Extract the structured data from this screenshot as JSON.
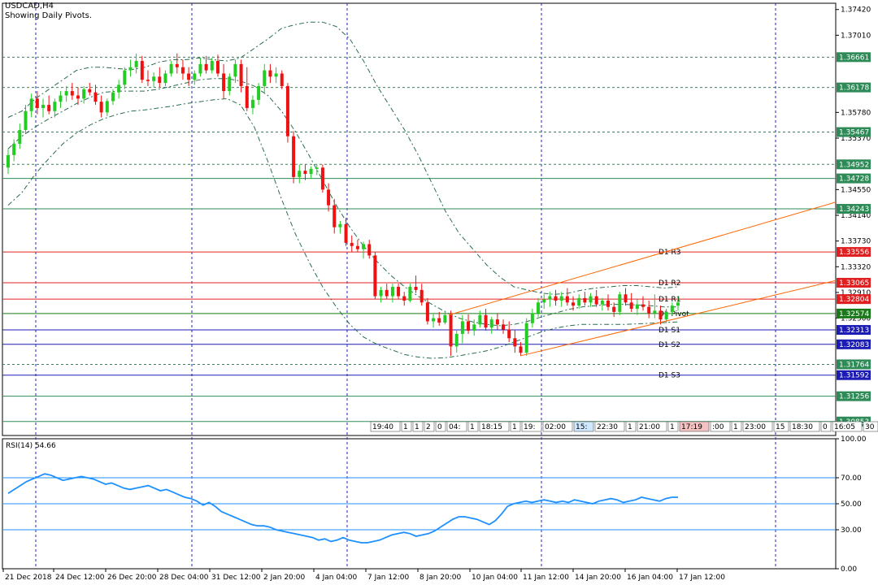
{
  "header": {
    "symbol_line": "USDCAD,H4",
    "subtitle": "Showing Daily Pivots."
  },
  "rsi_panel": {
    "label": "RSI(14) 54.66",
    "levels": [
      70,
      50,
      30
    ],
    "axis_labels": [
      "100.00",
      "70.00",
      "50.00",
      "30.00",
      "0.00"
    ]
  },
  "colors": {
    "up_candle": "#22cc22",
    "down_candle": "#ee1111",
    "band": "#2a6e4e",
    "resistance": "#e02020",
    "support": "#1c1cb4",
    "pivot": "#1a7a1a",
    "green_line": "#2e8b57",
    "channel": "#ff6600",
    "rsi_line": "#1e90ff",
    "rsi_levels": "#1e90ff",
    "grid": "#2020c8"
  },
  "chart_data": {
    "type": "candlestick",
    "title": "USDCAD,H4",
    "subtitle": "Showing Daily Pivots.",
    "ylim": [
      1.3063,
      1.3752
    ],
    "y_ticks": [
      "1.37420",
      "1.37010",
      "1.35780",
      "1.35370",
      "1.34550",
      "1.34140",
      "1.33730",
      "1.33320",
      "1.32910",
      "1.32500"
    ],
    "x_tick_labels": [
      "21 Dec 2018",
      "24 Dec 12:00",
      "26 Dec 20:00",
      "28 Dec 04:00",
      "31 Dec 12:00",
      "2 Jan 20:00",
      "4 Jan 04:00",
      "7 Jan 12:00",
      "8 Jan 20:00",
      "10 Jan 04:00",
      "11 Jan 12:00",
      "14 Jan 20:00",
      "16 Jan 04:00",
      "17 Jan 12:00"
    ],
    "levels": [
      {
        "value": 1.36661,
        "label": "1.36661",
        "style": "green-dashed",
        "text": ""
      },
      {
        "value": 1.36178,
        "label": "1.36178",
        "style": "green-dashed",
        "text": ""
      },
      {
        "value": 1.35467,
        "label": "1.35467",
        "style": "green-dashed",
        "text": ""
      },
      {
        "value": 1.34952,
        "label": "1.34952",
        "style": "green-dashed",
        "text": ""
      },
      {
        "value": 1.34728,
        "label": "1.34728",
        "style": "green-solid",
        "text": ""
      },
      {
        "value": 1.34243,
        "label": "1.34243",
        "style": "green-solid",
        "text": ""
      },
      {
        "value": 1.33556,
        "label": "1.33556",
        "style": "red",
        "text": "D1 R3"
      },
      {
        "value": 1.33065,
        "label": "1.33065",
        "style": "red",
        "text": "D1 R2"
      },
      {
        "value": 1.32804,
        "label": "1.32804",
        "style": "red",
        "text": "D1 R1"
      },
      {
        "value": 1.32574,
        "label": "1.32574",
        "style": "pivot",
        "text": "D1 Pivot"
      },
      {
        "value": 1.32313,
        "label": "1.32313",
        "style": "blue",
        "text": "D1 S1"
      },
      {
        "value": 1.32083,
        "label": "1.32083",
        "style": "blue",
        "text": "D1 S2"
      },
      {
        "value": 1.31764,
        "label": "1.31764",
        "style": "green-dashed",
        "text": ""
      },
      {
        "value": 1.31592,
        "label": "1.31592",
        "style": "blue",
        "text": "D1 S3"
      },
      {
        "value": 1.31256,
        "label": "1.31256",
        "style": "green-solid",
        "text": ""
      },
      {
        "value": 1.30853,
        "label": "1.30853",
        "style": "green-solid",
        "text": ""
      }
    ],
    "candles": [
      [
        1.349,
        1.352,
        1.348,
        1.351
      ],
      [
        1.351,
        1.3535,
        1.35,
        1.3528
      ],
      [
        1.3528,
        1.356,
        1.352,
        1.355
      ],
      [
        1.355,
        1.359,
        1.3545,
        1.358
      ],
      [
        1.358,
        1.3608,
        1.357,
        1.36
      ],
      [
        1.36,
        1.3612,
        1.3575,
        1.3585
      ],
      [
        1.3585,
        1.36,
        1.357,
        1.359
      ],
      [
        1.359,
        1.3605,
        1.3575,
        1.358
      ],
      [
        1.358,
        1.36,
        1.357,
        1.3595
      ],
      [
        1.3595,
        1.3612,
        1.3585,
        1.3605
      ],
      [
        1.3605,
        1.362,
        1.3595,
        1.3612
      ],
      [
        1.3612,
        1.3625,
        1.3598,
        1.3605
      ],
      [
        1.3605,
        1.3618,
        1.359,
        1.36
      ],
      [
        1.36,
        1.362,
        1.3592,
        1.3615
      ],
      [
        1.3615,
        1.3625,
        1.3605,
        1.361
      ],
      [
        1.361,
        1.3622,
        1.359,
        1.3595
      ],
      [
        1.3595,
        1.3605,
        1.357,
        1.3578
      ],
      [
        1.3578,
        1.36,
        1.3572,
        1.3596
      ],
      [
        1.3596,
        1.3615,
        1.359,
        1.361
      ],
      [
        1.361,
        1.363,
        1.36,
        1.3622
      ],
      [
        1.3622,
        1.365,
        1.3615,
        1.3645
      ],
      [
        1.3645,
        1.3662,
        1.3635,
        1.365
      ],
      [
        1.365,
        1.3672,
        1.364,
        1.366
      ],
      [
        1.366,
        1.3668,
        1.3625,
        1.363
      ],
      [
        1.363,
        1.3645,
        1.362,
        1.3628
      ],
      [
        1.3628,
        1.3642,
        1.3618,
        1.3635
      ],
      [
        1.3635,
        1.365,
        1.3618,
        1.3625
      ],
      [
        1.3625,
        1.3645,
        1.362,
        1.364
      ],
      [
        1.364,
        1.366,
        1.3635,
        1.3655
      ],
      [
        1.3655,
        1.3672,
        1.364,
        1.365
      ],
      [
        1.365,
        1.3662,
        1.363,
        1.364
      ],
      [
        1.364,
        1.365,
        1.362,
        1.363
      ],
      [
        1.363,
        1.3645,
        1.3622,
        1.364
      ],
      [
        1.364,
        1.3665,
        1.3635,
        1.3655
      ],
      [
        1.3655,
        1.3668,
        1.364,
        1.3645
      ],
      [
        1.3645,
        1.3665,
        1.364,
        1.366
      ],
      [
        1.366,
        1.367,
        1.3635,
        1.364
      ],
      [
        1.364,
        1.3655,
        1.36,
        1.3612
      ],
      [
        1.3612,
        1.364,
        1.3605,
        1.3635
      ],
      [
        1.3635,
        1.3662,
        1.3625,
        1.3655
      ],
      [
        1.3655,
        1.3662,
        1.361,
        1.362
      ],
      [
        1.362,
        1.365,
        1.358,
        1.3585
      ],
      [
        1.3585,
        1.3605,
        1.3575,
        1.3598
      ],
      [
        1.3598,
        1.3625,
        1.359,
        1.362
      ],
      [
        1.362,
        1.3655,
        1.361,
        1.3645
      ],
      [
        1.3645,
        1.3655,
        1.3625,
        1.3635
      ],
      [
        1.3635,
        1.365,
        1.3625,
        1.364
      ],
      [
        1.364,
        1.3645,
        1.3615,
        1.362
      ],
      [
        1.362,
        1.3625,
        1.353,
        1.354
      ],
      [
        1.354,
        1.3548,
        1.3465,
        1.3475
      ],
      [
        1.3475,
        1.3495,
        1.3465,
        1.3485
      ],
      [
        1.3485,
        1.3495,
        1.347,
        1.348
      ],
      [
        1.348,
        1.3492,
        1.3472,
        1.3488
      ],
      [
        1.3488,
        1.3495,
        1.3478,
        1.349
      ],
      [
        1.349,
        1.3495,
        1.345,
        1.3455
      ],
      [
        1.3455,
        1.3465,
        1.342,
        1.343
      ],
      [
        1.343,
        1.344,
        1.3385,
        1.3395
      ],
      [
        1.3395,
        1.3405,
        1.3385,
        1.34
      ],
      [
        1.34,
        1.341,
        1.3365,
        1.337
      ],
      [
        1.337,
        1.3382,
        1.3355,
        1.3365
      ],
      [
        1.3365,
        1.3375,
        1.3355,
        1.336
      ],
      [
        1.336,
        1.3372,
        1.3345,
        1.3368
      ],
      [
        1.3368,
        1.3375,
        1.3345,
        1.335
      ],
      [
        1.335,
        1.3355,
        1.328,
        1.3285
      ],
      [
        1.3285,
        1.33,
        1.3275,
        1.3295
      ],
      [
        1.3295,
        1.3305,
        1.328,
        1.3285
      ],
      [
        1.3285,
        1.3305,
        1.3275,
        1.33
      ],
      [
        1.33,
        1.3305,
        1.328,
        1.3285
      ],
      [
        1.3285,
        1.3292,
        1.327,
        1.3278
      ],
      [
        1.3278,
        1.3305,
        1.3275,
        1.33
      ],
      [
        1.33,
        1.3318,
        1.329,
        1.3295
      ],
      [
        1.3295,
        1.3305,
        1.327,
        1.3275
      ],
      [
        1.3275,
        1.3282,
        1.324,
        1.3245
      ],
      [
        1.3245,
        1.3258,
        1.3235,
        1.325
      ],
      [
        1.325,
        1.326,
        1.3238,
        1.3243
      ],
      [
        1.3243,
        1.3262,
        1.324,
        1.3255
      ],
      [
        1.3255,
        1.3262,
        1.319,
        1.3205
      ],
      [
        1.3205,
        1.323,
        1.3195,
        1.3225
      ],
      [
        1.3225,
        1.3255,
        1.321,
        1.3245
      ],
      [
        1.3245,
        1.3256,
        1.3225,
        1.323
      ],
      [
        1.323,
        1.3248,
        1.3222,
        1.324
      ],
      [
        1.324,
        1.3262,
        1.3235,
        1.3255
      ],
      [
        1.3255,
        1.3265,
        1.323,
        1.3235
      ],
      [
        1.3235,
        1.3252,
        1.3225,
        1.3248
      ],
      [
        1.3248,
        1.3258,
        1.3232,
        1.324
      ],
      [
        1.324,
        1.3248,
        1.3225,
        1.3232
      ],
      [
        1.3232,
        1.3245,
        1.3212,
        1.3218
      ],
      [
        1.3218,
        1.3232,
        1.3195,
        1.3205
      ],
      [
        1.3205,
        1.3212,
        1.319,
        1.3195
      ],
      [
        1.3195,
        1.325,
        1.319,
        1.3242
      ],
      [
        1.3242,
        1.3265,
        1.3235,
        1.3258
      ],
      [
        1.3258,
        1.3282,
        1.3252,
        1.3275
      ],
      [
        1.3275,
        1.3288,
        1.3265,
        1.328
      ],
      [
        1.328,
        1.3292,
        1.3268,
        1.3285
      ],
      [
        1.3285,
        1.3295,
        1.327,
        1.3278
      ],
      [
        1.3278,
        1.3292,
        1.3268,
        1.3285
      ],
      [
        1.3285,
        1.3298,
        1.327,
        1.3275
      ],
      [
        1.3275,
        1.3285,
        1.3262,
        1.327
      ],
      [
        1.327,
        1.3288,
        1.3265,
        1.3282
      ],
      [
        1.3282,
        1.3292,
        1.327,
        1.3275
      ],
      [
        1.3275,
        1.329,
        1.3268,
        1.3285
      ],
      [
        1.3285,
        1.3295,
        1.3268,
        1.3272
      ],
      [
        1.3272,
        1.3282,
        1.3262,
        1.3278
      ],
      [
        1.3278,
        1.3288,
        1.3262,
        1.3268
      ],
      [
        1.3268,
        1.3275,
        1.3252,
        1.326
      ],
      [
        1.326,
        1.3292,
        1.3255,
        1.3288
      ],
      [
        1.3288,
        1.3298,
        1.327,
        1.3275
      ],
      [
        1.3275,
        1.329,
        1.326,
        1.3265
      ],
      [
        1.3265,
        1.328,
        1.3255,
        1.3272
      ],
      [
        1.3272,
        1.3285,
        1.3262,
        1.3268
      ],
      [
        1.3268,
        1.3278,
        1.325,
        1.3258
      ],
      [
        1.3258,
        1.3288,
        1.325,
        1.3262
      ],
      [
        1.3262,
        1.327,
        1.324,
        1.3248
      ],
      [
        1.3248,
        1.3265,
        1.3242,
        1.326
      ],
      [
        1.326,
        1.3275,
        1.3255,
        1.327
      ],
      [
        1.327,
        1.3285,
        1.3262,
        1.3275
      ]
    ],
    "upper_band": [
      1.357,
      1.358,
      1.36,
      1.3615,
      1.363,
      1.3645,
      1.365,
      1.365,
      1.3648,
      1.3646,
      1.365,
      1.3658,
      1.3662,
      1.3662,
      1.3665,
      1.3662,
      1.366,
      1.3665,
      1.368,
      1.3695,
      1.3712,
      1.3718,
      1.3722,
      1.3722,
      1.3715,
      1.3695,
      1.366,
      1.362,
      1.3585,
      1.355,
      1.351,
      1.3465,
      1.342,
      1.3385,
      1.336,
      1.3335,
      1.3315,
      1.33,
      1.3295,
      1.329,
      1.3288,
      1.329,
      1.3295,
      1.3298,
      1.33,
      1.3302,
      1.3302,
      1.33,
      1.3298,
      1.33
    ],
    "middle_band": [
      1.352,
      1.354,
      1.3555,
      1.3568,
      1.358,
      1.3592,
      1.3602,
      1.361,
      1.3612,
      1.3612,
      1.3612,
      1.3615,
      1.362,
      1.3625,
      1.363,
      1.3632,
      1.3632,
      1.3628,
      1.362,
      1.3605,
      1.358,
      1.3548,
      1.351,
      1.347,
      1.343,
      1.3395,
      1.3365,
      1.334,
      1.3318,
      1.33,
      1.3285,
      1.3272,
      1.326,
      1.325,
      1.3244,
      1.324,
      1.3238,
      1.324,
      1.3245,
      1.3252,
      1.3258,
      1.3264,
      1.3268,
      1.327,
      1.3272,
      1.3272,
      1.3271,
      1.327,
      1.3268,
      1.3268
    ],
    "lower_band": [
      1.343,
      1.345,
      1.348,
      1.3505,
      1.3528,
      1.3545,
      1.3558,
      1.3568,
      1.3575,
      1.358,
      1.3582,
      1.3585,
      1.3588,
      1.3592,
      1.3595,
      1.3598,
      1.36,
      1.359,
      1.3555,
      1.35,
      1.344,
      1.3385,
      1.334,
      1.33,
      1.3268,
      1.324,
      1.322,
      1.3208,
      1.32,
      1.3192,
      1.3188,
      1.3186,
      1.3187,
      1.319,
      1.3194,
      1.3198,
      1.3204,
      1.3212,
      1.322,
      1.3228,
      1.3234,
      1.3238,
      1.324,
      1.324,
      1.324,
      1.324,
      1.3241,
      1.3242,
      1.3243,
      1.3244
    ],
    "channel_upper": [
      [
        1.3255,
        1.3435
      ]
    ],
    "channel_lower": [
      [
        1.319,
        1.331
      ]
    ],
    "time_tags": [
      "19:40",
      "1",
      "1",
      "2",
      "0",
      "04:",
      "1",
      "18:15",
      "1",
      "19:",
      "02:00",
      "15:",
      "22:30",
      "1",
      "21:00",
      "1",
      "17:19",
      ":00",
      "1",
      "23:00",
      "15",
      "18:30",
      "0",
      "16:05",
      "30"
    ],
    "rsi": [
      58,
      61,
      64,
      67,
      69,
      71,
      73,
      72,
      70,
      68,
      69,
      70,
      71,
      70,
      69,
      67,
      65,
      66,
      64,
      62,
      61,
      62,
      63,
      64,
      62,
      60,
      61,
      59,
      57,
      55,
      54,
      52,
      49,
      51,
      48,
      44,
      42,
      40,
      38,
      36,
      34,
      33,
      33,
      32,
      30,
      29,
      28,
      27,
      26,
      25,
      24,
      22,
      23,
      21,
      22,
      24,
      22,
      21,
      20,
      20,
      21,
      22,
      24,
      26,
      27,
      28,
      27,
      25,
      26,
      27,
      29,
      32,
      35,
      38,
      40,
      40,
      39,
      38,
      36,
      34,
      37,
      42,
      48,
      50,
      51,
      52,
      51,
      52,
      53,
      52,
      51,
      52,
      51,
      53,
      52,
      51,
      50,
      52,
      53,
      54,
      53,
      51,
      52,
      53,
      55,
      54,
      53,
      52,
      54,
      55,
      55
    ]
  }
}
